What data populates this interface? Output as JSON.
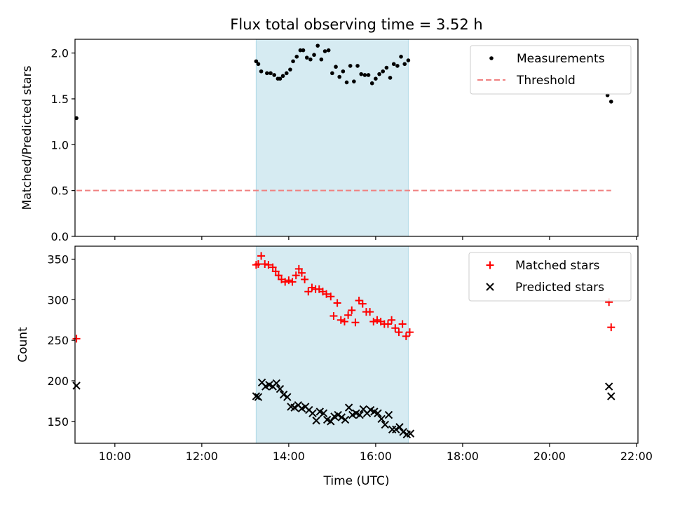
{
  "colors": {
    "measurements": "#000000",
    "threshold": "#f08080",
    "matched": "#ff0000",
    "predicted": "#000000",
    "window_fill": "#add8e6"
  },
  "chart_data": [
    {
      "type": "scatter",
      "title": "Flux total observing time = 3.52 h",
      "xlabel": "",
      "ylabel": "Matched/Predicted stars",
      "xlim": [
        "09:05",
        "22:02"
      ],
      "ylim": [
        0,
        2.15
      ],
      "yticks": [
        0.0,
        0.5,
        1.0,
        1.5,
        2.0
      ],
      "ytick_labels": [
        "0.0",
        "0.5",
        "1.0",
        "1.5",
        "2.0"
      ],
      "xticks": [
        "10:00",
        "12:00",
        "14:00",
        "16:00",
        "18:00",
        "20:00",
        "22:00"
      ],
      "shaded_window": [
        "13:15",
        "16:45"
      ],
      "grid": false,
      "legend_position": "upper right",
      "series": [
        {
          "name": "Measurements",
          "marker": "dot",
          "points": [
            [
              "09:07",
              1.29
            ],
            [
              "13:15",
              1.91
            ],
            [
              "13:18",
              1.88
            ],
            [
              "13:22",
              1.8
            ],
            [
              "13:30",
              1.78
            ],
            [
              "13:35",
              1.78
            ],
            [
              "13:40",
              1.76
            ],
            [
              "13:45",
              1.72
            ],
            [
              "13:48",
              1.72
            ],
            [
              "13:52",
              1.75
            ],
            [
              "13:57",
              1.78
            ],
            [
              "14:02",
              1.82
            ],
            [
              "14:06",
              1.91
            ],
            [
              "14:11",
              1.96
            ],
            [
              "14:16",
              2.03
            ],
            [
              "14:20",
              2.03
            ],
            [
              "14:25",
              1.95
            ],
            [
              "14:30",
              1.93
            ],
            [
              "14:35",
              1.98
            ],
            [
              "14:40",
              2.08
            ],
            [
              "14:45",
              1.93
            ],
            [
              "14:50",
              2.02
            ],
            [
              "14:55",
              2.03
            ],
            [
              "15:00",
              1.78
            ],
            [
              "15:05",
              1.85
            ],
            [
              "15:10",
              1.74
            ],
            [
              "15:15",
              1.8
            ],
            [
              "15:20",
              1.68
            ],
            [
              "15:25",
              1.86
            ],
            [
              "15:30",
              1.69
            ],
            [
              "15:35",
              1.86
            ],
            [
              "15:40",
              1.77
            ],
            [
              "15:45",
              1.76
            ],
            [
              "15:50",
              1.76
            ],
            [
              "15:55",
              1.67
            ],
            [
              "16:00",
              1.72
            ],
            [
              "16:05",
              1.77
            ],
            [
              "16:10",
              1.8
            ],
            [
              "16:15",
              1.84
            ],
            [
              "16:20",
              1.73
            ],
            [
              "16:25",
              1.88
            ],
            [
              "16:30",
              1.86
            ],
            [
              "16:35",
              1.96
            ],
            [
              "16:40",
              1.88
            ],
            [
              "16:45",
              1.92
            ],
            [
              "21:20",
              1.54
            ],
            [
              "21:25",
              1.47
            ]
          ]
        },
        {
          "name": "Threshold",
          "marker": "dashed-line",
          "points": [
            [
              "09:07",
              0.5
            ],
            [
              "21:25",
              0.5
            ]
          ]
        }
      ]
    },
    {
      "type": "scatter",
      "title": "",
      "xlabel": "Time (UTC)",
      "ylabel": "Count",
      "xlim": [
        "09:05",
        "22:02"
      ],
      "ylim": [
        123,
        366
      ],
      "yticks": [
        150,
        200,
        250,
        300,
        350
      ],
      "ytick_labels": [
        "150",
        "200",
        "250",
        "300",
        "350"
      ],
      "xticks": [
        "10:00",
        "12:00",
        "14:00",
        "16:00",
        "18:00",
        "20:00",
        "22:00"
      ],
      "xtick_labels": [
        "10:00",
        "12:00",
        "14:00",
        "16:00",
        "18:00",
        "20:00",
        "22:00"
      ],
      "shaded_window": [
        "13:15",
        "16:45"
      ],
      "grid": false,
      "legend_position": "upper right",
      "series": [
        {
          "name": "Matched stars",
          "marker": "plus",
          "points": [
            [
              "09:07",
              252
            ],
            [
              "13:15",
              343
            ],
            [
              "13:18",
              344
            ],
            [
              "13:22",
              354
            ],
            [
              "13:27",
              344
            ],
            [
              "13:32",
              343
            ],
            [
              "13:38",
              340
            ],
            [
              "13:42",
              335
            ],
            [
              "13:46",
              330
            ],
            [
              "13:50",
              325
            ],
            [
              "13:55",
              322
            ],
            [
              "14:00",
              324
            ],
            [
              "14:05",
              322
            ],
            [
              "14:10",
              330
            ],
            [
              "14:14",
              338
            ],
            [
              "14:18",
              333
            ],
            [
              "14:22",
              325
            ],
            [
              "14:27",
              310
            ],
            [
              "14:32",
              315
            ],
            [
              "14:37",
              313
            ],
            [
              "14:42",
              313
            ],
            [
              "14:47",
              310
            ],
            [
              "14:52",
              307
            ],
            [
              "14:58",
              304
            ],
            [
              "15:02",
              280
            ],
            [
              "15:07",
              296
            ],
            [
              "15:12",
              275
            ],
            [
              "15:17",
              273
            ],
            [
              "15:22",
              281
            ],
            [
              "15:27",
              287
            ],
            [
              "15:32",
              272
            ],
            [
              "15:37",
              299
            ],
            [
              "15:42",
              295
            ],
            [
              "15:47",
              285
            ],
            [
              "15:52",
              285
            ],
            [
              "15:57",
              273
            ],
            [
              "16:02",
              275
            ],
            [
              "16:07",
              273
            ],
            [
              "16:12",
              270
            ],
            [
              "16:17",
              270
            ],
            [
              "16:22",
              275
            ],
            [
              "16:27",
              265
            ],
            [
              "16:32",
              260
            ],
            [
              "16:37",
              270
            ],
            [
              "16:42",
              255
            ],
            [
              "16:47",
              260
            ],
            [
              "21:22",
              297
            ],
            [
              "21:25",
              266
            ]
          ]
        },
        {
          "name": "Predicted stars",
          "marker": "x",
          "points": [
            [
              "09:07",
              194
            ],
            [
              "13:15",
              181
            ],
            [
              "13:18",
              180
            ],
            [
              "13:23",
              198
            ],
            [
              "13:28",
              193
            ],
            [
              "13:33",
              195
            ],
            [
              "13:38",
              193
            ],
            [
              "13:43",
              197
            ],
            [
              "13:48",
              190
            ],
            [
              "13:53",
              183
            ],
            [
              "13:58",
              180
            ],
            [
              "14:03",
              168
            ],
            [
              "14:08",
              167
            ],
            [
              "14:13",
              170
            ],
            [
              "14:18",
              166
            ],
            [
              "14:23",
              168
            ],
            [
              "14:28",
              164
            ],
            [
              "14:33",
              160
            ],
            [
              "14:38",
              151
            ],
            [
              "14:43",
              162
            ],
            [
              "14:48",
              160
            ],
            [
              "14:53",
              152
            ],
            [
              "14:58",
              150
            ],
            [
              "15:03",
              156
            ],
            [
              "15:08",
              158
            ],
            [
              "15:13",
              155
            ],
            [
              "15:18",
              152
            ],
            [
              "15:23",
              167
            ],
            [
              "15:28",
              158
            ],
            [
              "15:33",
              160
            ],
            [
              "15:38",
              158
            ],
            [
              "15:43",
              165
            ],
            [
              "15:48",
              160
            ],
            [
              "15:53",
              164
            ],
            [
              "15:58",
              162
            ],
            [
              "16:03",
              160
            ],
            [
              "16:08",
              153
            ],
            [
              "16:13",
              146
            ],
            [
              "16:18",
              158
            ],
            [
              "16:23",
              140
            ],
            [
              "16:28",
              140
            ],
            [
              "16:33",
              143
            ],
            [
              "16:38",
              137
            ],
            [
              "16:43",
              134
            ],
            [
              "16:48",
              135
            ],
            [
              "21:22",
              193
            ],
            [
              "21:25",
              181
            ]
          ]
        }
      ]
    }
  ]
}
